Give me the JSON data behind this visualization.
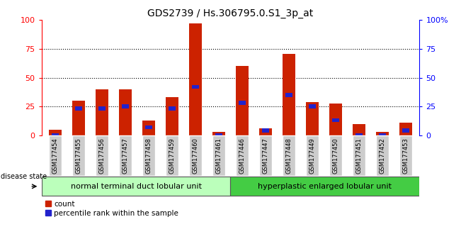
{
  "title": "GDS2739 / Hs.306795.0.S1_3p_at",
  "categories": [
    "GSM177454",
    "GSM177455",
    "GSM177456",
    "GSM177457",
    "GSM177458",
    "GSM177459",
    "GSM177460",
    "GSM177461",
    "GSM177446",
    "GSM177447",
    "GSM177448",
    "GSM177449",
    "GSM177450",
    "GSM177451",
    "GSM177452",
    "GSM177453"
  ],
  "red_values": [
    5,
    30,
    40,
    40,
    13,
    33,
    97,
    3,
    60,
    6,
    71,
    29,
    28,
    10,
    3,
    11
  ],
  "blue_values": [
    2,
    25,
    25,
    27,
    9,
    25,
    44,
    2,
    30,
    6,
    37,
    27,
    15,
    2,
    2,
    6
  ],
  "red_color": "#cc2200",
  "blue_color": "#2222cc",
  "ylim": [
    0,
    100
  ],
  "yticks": [
    0,
    25,
    50,
    75,
    100
  ],
  "group1_label": "normal terminal duct lobular unit",
  "group2_label": "hyperplastic enlarged lobular unit",
  "group1_color": "#bbffbb",
  "group2_color": "#44cc44",
  "disease_state_label": "disease state",
  "legend_red": "count",
  "legend_blue": "percentile rank within the sample",
  "tick_bg_color": "#cccccc",
  "bar_width": 0.55,
  "title_fontsize": 10
}
